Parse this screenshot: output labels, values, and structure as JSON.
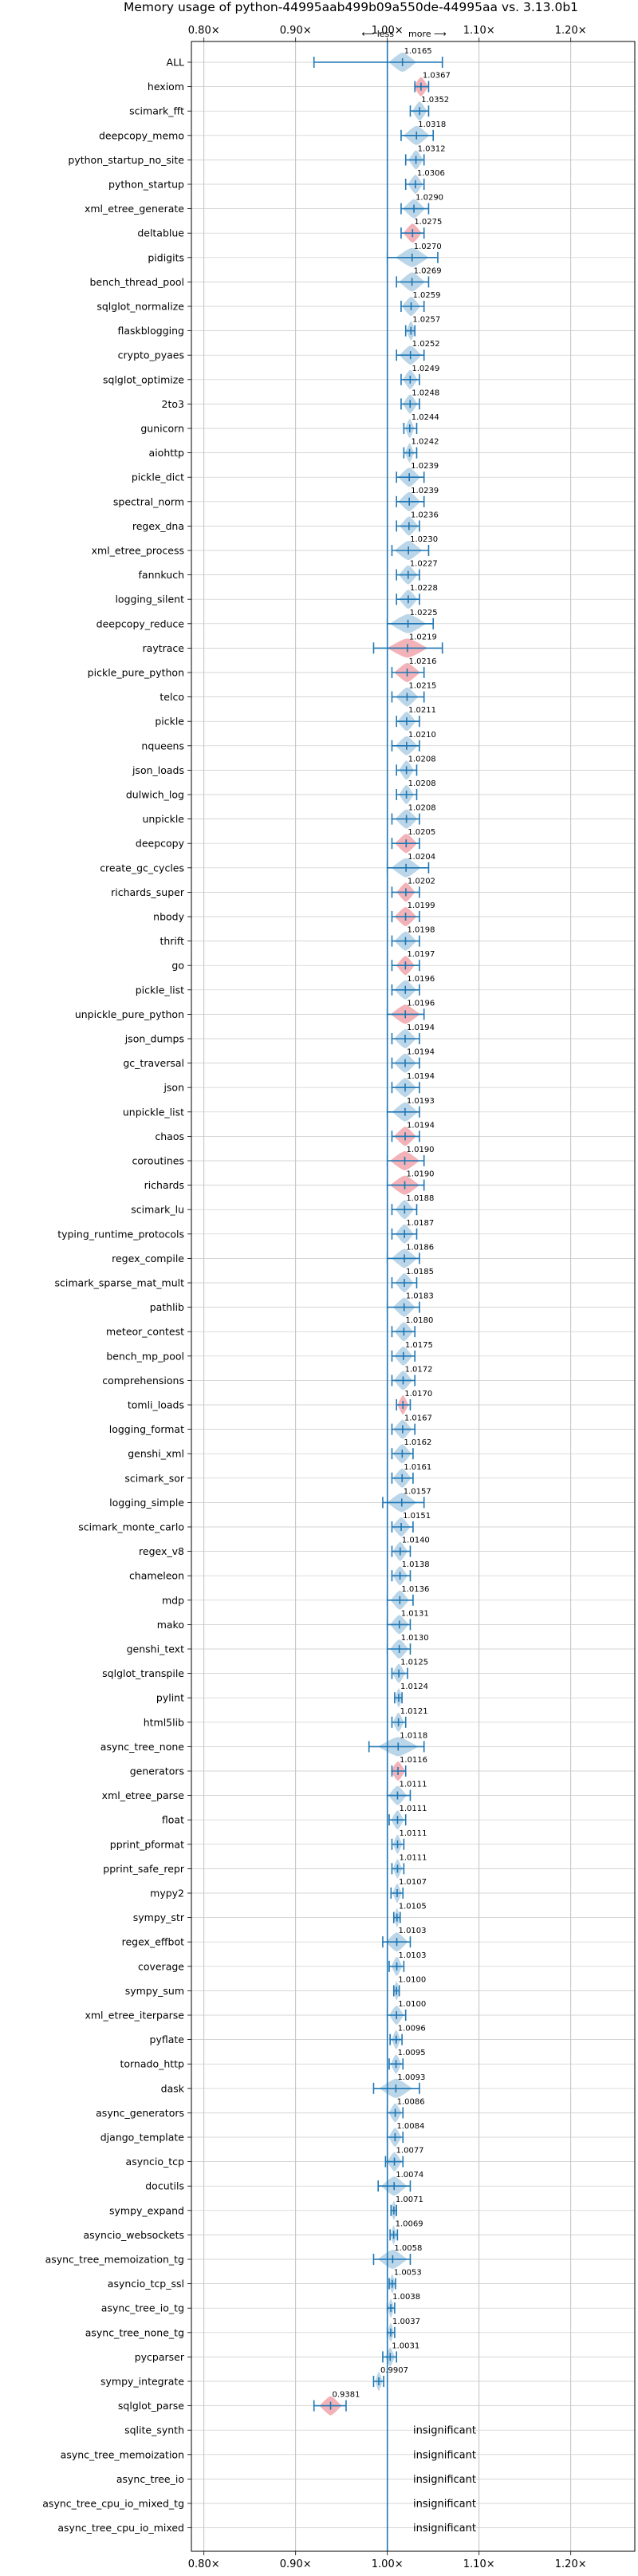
{
  "chart_data": {
    "type": "scatter",
    "title": "Memory usage of python-44995aab499b09a550de-44995aa vs. 3.13.0b1",
    "direction": {
      "less": "⟵ less",
      "more": "more ⟶"
    },
    "x_ticks": [
      {
        "value": 0.8,
        "label": "0.80×"
      },
      {
        "value": 0.9,
        "label": "0.90×"
      },
      {
        "value": 1.0,
        "label": "1.00×"
      },
      {
        "value": 1.1,
        "label": "1.10×"
      },
      {
        "value": 1.2,
        "label": "1.20×"
      }
    ],
    "xlim": [
      0.75,
      1.25
    ],
    "grid": true,
    "reference_line": 1.0,
    "insignificant_label": "insignificant",
    "colors": {
      "improved": "#1f77b4",
      "regressed": "#e8737d",
      "line": "#1f77b4"
    },
    "benchmarks": [
      {
        "name": "ALL",
        "value": 1.0165,
        "label": "1.0165",
        "lo": 0.92,
        "hi": 1.06,
        "spread": 0.015,
        "color": "blue"
      },
      {
        "name": "hexiom",
        "value": 1.0367,
        "label": "1.0367",
        "lo": 1.03,
        "hi": 1.045,
        "spread": 0.008,
        "color": "red"
      },
      {
        "name": "scimark_fft",
        "value": 1.0352,
        "label": "1.0352",
        "lo": 1.025,
        "hi": 1.045,
        "spread": 0.008,
        "color": "blue"
      },
      {
        "name": "deepcopy_memo",
        "value": 1.0318,
        "label": "1.0318",
        "lo": 1.015,
        "hi": 1.05,
        "spread": 0.014,
        "color": "blue"
      },
      {
        "name": "python_startup_no_site",
        "value": 1.0312,
        "label": "1.0312",
        "lo": 1.02,
        "hi": 1.04,
        "spread": 0.008,
        "color": "blue"
      },
      {
        "name": "python_startup",
        "value": 1.0306,
        "label": "1.0306",
        "lo": 1.02,
        "hi": 1.04,
        "spread": 0.008,
        "color": "blue"
      },
      {
        "name": "xml_etree_generate",
        "value": 1.029,
        "label": "1.0290",
        "lo": 1.015,
        "hi": 1.045,
        "spread": 0.012,
        "color": "blue"
      },
      {
        "name": "deltablue",
        "value": 1.0275,
        "label": "1.0275",
        "lo": 1.015,
        "hi": 1.04,
        "spread": 0.01,
        "color": "red"
      },
      {
        "name": "pidigits",
        "value": 1.027,
        "label": "1.0270",
        "lo": 1.0,
        "hi": 1.055,
        "spread": 0.018,
        "color": "blue"
      },
      {
        "name": "bench_thread_pool",
        "value": 1.0269,
        "label": "1.0269",
        "lo": 1.01,
        "hi": 1.045,
        "spread": 0.014,
        "color": "blue"
      },
      {
        "name": "sqlglot_normalize",
        "value": 1.0259,
        "label": "1.0259",
        "lo": 1.015,
        "hi": 1.04,
        "spread": 0.01,
        "color": "blue"
      },
      {
        "name": "flaskblogging",
        "value": 1.0257,
        "label": "1.0257",
        "lo": 1.02,
        "hi": 1.03,
        "spread": 0.005,
        "color": "blue"
      },
      {
        "name": "crypto_pyaes",
        "value": 1.0252,
        "label": "1.0252",
        "lo": 1.01,
        "hi": 1.04,
        "spread": 0.012,
        "color": "blue"
      },
      {
        "name": "sqlglot_optimize",
        "value": 1.0249,
        "label": "1.0249",
        "lo": 1.015,
        "hi": 1.035,
        "spread": 0.008,
        "color": "blue"
      },
      {
        "name": "2to3",
        "value": 1.0248,
        "label": "1.0248",
        "lo": 1.015,
        "hi": 1.035,
        "spread": 0.008,
        "color": "blue"
      },
      {
        "name": "gunicorn",
        "value": 1.0244,
        "label": "1.0244",
        "lo": 1.018,
        "hi": 1.032,
        "spread": 0.005,
        "color": "blue"
      },
      {
        "name": "aiohttp",
        "value": 1.0242,
        "label": "1.0242",
        "lo": 1.018,
        "hi": 1.032,
        "spread": 0.005,
        "color": "blue"
      },
      {
        "name": "pickle_dict",
        "value": 1.0239,
        "label": "1.0239",
        "lo": 1.01,
        "hi": 1.04,
        "spread": 0.012,
        "color": "blue"
      },
      {
        "name": "spectral_norm",
        "value": 1.0239,
        "label": "1.0239",
        "lo": 1.01,
        "hi": 1.04,
        "spread": 0.012,
        "color": "blue"
      },
      {
        "name": "regex_dna",
        "value": 1.0236,
        "label": "1.0236",
        "lo": 1.01,
        "hi": 1.035,
        "spread": 0.01,
        "color": "blue"
      },
      {
        "name": "xml_etree_process",
        "value": 1.023,
        "label": "1.0230",
        "lo": 1.005,
        "hi": 1.045,
        "spread": 0.015,
        "color": "blue"
      },
      {
        "name": "fannkuch",
        "value": 1.0227,
        "label": "1.0227",
        "lo": 1.01,
        "hi": 1.035,
        "spread": 0.01,
        "color": "blue"
      },
      {
        "name": "logging_silent",
        "value": 1.0228,
        "label": "1.0228",
        "lo": 1.01,
        "hi": 1.035,
        "spread": 0.01,
        "color": "blue"
      },
      {
        "name": "deepcopy_reduce",
        "value": 1.0225,
        "label": "1.0225",
        "lo": 1.0,
        "hi": 1.05,
        "spread": 0.02,
        "color": "blue"
      },
      {
        "name": "raytrace",
        "value": 1.0219,
        "label": "1.0219",
        "lo": 0.985,
        "hi": 1.06,
        "spread": 0.022,
        "color": "red"
      },
      {
        "name": "pickle_pure_python",
        "value": 1.0216,
        "label": "1.0216",
        "lo": 1.005,
        "hi": 1.04,
        "spread": 0.014,
        "color": "red"
      },
      {
        "name": "telco",
        "value": 1.0215,
        "label": "1.0215",
        "lo": 1.005,
        "hi": 1.04,
        "spread": 0.012,
        "color": "blue"
      },
      {
        "name": "pickle",
        "value": 1.0211,
        "label": "1.0211",
        "lo": 1.01,
        "hi": 1.035,
        "spread": 0.01,
        "color": "blue"
      },
      {
        "name": "nqueens",
        "value": 1.021,
        "label": "1.0210",
        "lo": 1.005,
        "hi": 1.035,
        "spread": 0.012,
        "color": "blue"
      },
      {
        "name": "json_loads",
        "value": 1.0208,
        "label": "1.0208",
        "lo": 1.01,
        "hi": 1.032,
        "spread": 0.008,
        "color": "blue"
      },
      {
        "name": "dulwich_log",
        "value": 1.0208,
        "label": "1.0208",
        "lo": 1.01,
        "hi": 1.032,
        "spread": 0.008,
        "color": "blue"
      },
      {
        "name": "unpickle",
        "value": 1.0208,
        "label": "1.0208",
        "lo": 1.005,
        "hi": 1.035,
        "spread": 0.012,
        "color": "blue"
      },
      {
        "name": "deepcopy",
        "value": 1.0205,
        "label": "1.0205",
        "lo": 1.005,
        "hi": 1.035,
        "spread": 0.012,
        "color": "red"
      },
      {
        "name": "create_gc_cycles",
        "value": 1.0204,
        "label": "1.0204",
        "lo": 1.0,
        "hi": 1.045,
        "spread": 0.016,
        "color": "blue"
      },
      {
        "name": "richards_super",
        "value": 1.0202,
        "label": "1.0202",
        "lo": 1.005,
        "hi": 1.035,
        "spread": 0.01,
        "color": "red"
      },
      {
        "name": "nbody",
        "value": 1.0199,
        "label": "1.0199",
        "lo": 1.005,
        "hi": 1.035,
        "spread": 0.012,
        "color": "red"
      },
      {
        "name": "thrift",
        "value": 1.0198,
        "label": "1.0198",
        "lo": 1.005,
        "hi": 1.035,
        "spread": 0.012,
        "color": "blue"
      },
      {
        "name": "go",
        "value": 1.0197,
        "label": "1.0197",
        "lo": 1.005,
        "hi": 1.035,
        "spread": 0.01,
        "color": "red"
      },
      {
        "name": "pickle_list",
        "value": 1.0196,
        "label": "1.0196",
        "lo": 1.005,
        "hi": 1.035,
        "spread": 0.012,
        "color": "blue"
      },
      {
        "name": "unpickle_pure_python",
        "value": 1.0196,
        "label": "1.0196",
        "lo": 1.0,
        "hi": 1.04,
        "spread": 0.016,
        "color": "red"
      },
      {
        "name": "json_dumps",
        "value": 1.0194,
        "label": "1.0194",
        "lo": 1.005,
        "hi": 1.035,
        "spread": 0.012,
        "color": "blue"
      },
      {
        "name": "gc_traversal",
        "value": 1.0194,
        "label": "1.0194",
        "lo": 1.005,
        "hi": 1.035,
        "spread": 0.012,
        "color": "blue"
      },
      {
        "name": "json",
        "value": 1.0194,
        "label": "1.0194",
        "lo": 1.005,
        "hi": 1.035,
        "spread": 0.012,
        "color": "blue"
      },
      {
        "name": "unpickle_list",
        "value": 1.0193,
        "label": "1.0193",
        "lo": 1.0,
        "hi": 1.035,
        "spread": 0.014,
        "color": "blue"
      },
      {
        "name": "chaos",
        "value": 1.0194,
        "label": "1.0194",
        "lo": 1.005,
        "hi": 1.035,
        "spread": 0.012,
        "color": "red"
      },
      {
        "name": "coroutines",
        "value": 1.019,
        "label": "1.0190",
        "lo": 1.0,
        "hi": 1.04,
        "spread": 0.016,
        "color": "red"
      },
      {
        "name": "richards",
        "value": 1.019,
        "label": "1.0190",
        "lo": 1.0,
        "hi": 1.04,
        "spread": 0.016,
        "color": "red"
      },
      {
        "name": "scimark_lu",
        "value": 1.0188,
        "label": "1.0188",
        "lo": 1.005,
        "hi": 1.032,
        "spread": 0.01,
        "color": "blue"
      },
      {
        "name": "typing_runtime_protocols",
        "value": 1.0187,
        "label": "1.0187",
        "lo": 1.005,
        "hi": 1.032,
        "spread": 0.01,
        "color": "blue"
      },
      {
        "name": "regex_compile",
        "value": 1.0186,
        "label": "1.0186",
        "lo": 1.0,
        "hi": 1.035,
        "spread": 0.014,
        "color": "blue"
      },
      {
        "name": "scimark_sparse_mat_mult",
        "value": 1.0185,
        "label": "1.0185",
        "lo": 1.005,
        "hi": 1.032,
        "spread": 0.01,
        "color": "blue"
      },
      {
        "name": "pathlib",
        "value": 1.0183,
        "label": "1.0183",
        "lo": 1.0,
        "hi": 1.035,
        "spread": 0.012,
        "color": "blue"
      },
      {
        "name": "meteor_contest",
        "value": 1.018,
        "label": "1.0180",
        "lo": 1.005,
        "hi": 1.03,
        "spread": 0.01,
        "color": "blue"
      },
      {
        "name": "bench_mp_pool",
        "value": 1.0175,
        "label": "1.0175",
        "lo": 1.005,
        "hi": 1.03,
        "spread": 0.01,
        "color": "blue"
      },
      {
        "name": "comprehensions",
        "value": 1.0172,
        "label": "1.0172",
        "lo": 1.005,
        "hi": 1.03,
        "spread": 0.01,
        "color": "blue"
      },
      {
        "name": "tomli_loads",
        "value": 1.017,
        "label": "1.0170",
        "lo": 1.01,
        "hi": 1.025,
        "spread": 0.006,
        "color": "red"
      },
      {
        "name": "logging_format",
        "value": 1.0167,
        "label": "1.0167",
        "lo": 1.005,
        "hi": 1.03,
        "spread": 0.01,
        "color": "blue"
      },
      {
        "name": "genshi_xml",
        "value": 1.0162,
        "label": "1.0162",
        "lo": 1.005,
        "hi": 1.028,
        "spread": 0.01,
        "color": "blue"
      },
      {
        "name": "scimark_sor",
        "value": 1.0161,
        "label": "1.0161",
        "lo": 1.005,
        "hi": 1.028,
        "spread": 0.01,
        "color": "blue"
      },
      {
        "name": "logging_simple",
        "value": 1.0157,
        "label": "1.0157",
        "lo": 0.995,
        "hi": 1.04,
        "spread": 0.016,
        "color": "blue"
      },
      {
        "name": "scimark_monte_carlo",
        "value": 1.0151,
        "label": "1.0151",
        "lo": 1.005,
        "hi": 1.028,
        "spread": 0.01,
        "color": "blue"
      },
      {
        "name": "regex_v8",
        "value": 1.014,
        "label": "1.0140",
        "lo": 1.005,
        "hi": 1.025,
        "spread": 0.008,
        "color": "blue"
      },
      {
        "name": "chameleon",
        "value": 1.0138,
        "label": "1.0138",
        "lo": 1.005,
        "hi": 1.025,
        "spread": 0.008,
        "color": "blue"
      },
      {
        "name": "mdp",
        "value": 1.0136,
        "label": "1.0136",
        "lo": 1.0,
        "hi": 1.028,
        "spread": 0.01,
        "color": "blue"
      },
      {
        "name": "mako",
        "value": 1.0131,
        "label": "1.0131",
        "lo": 1.0,
        "hi": 1.025,
        "spread": 0.01,
        "color": "blue"
      },
      {
        "name": "genshi_text",
        "value": 1.013,
        "label": "1.0130",
        "lo": 1.0,
        "hi": 1.025,
        "spread": 0.01,
        "color": "blue"
      },
      {
        "name": "sqlglot_transpile",
        "value": 1.0125,
        "label": "1.0125",
        "lo": 1.005,
        "hi": 1.022,
        "spread": 0.007,
        "color": "blue"
      },
      {
        "name": "pylint",
        "value": 1.0124,
        "label": "1.0124",
        "lo": 1.008,
        "hi": 1.016,
        "spread": 0.004,
        "color": "blue"
      },
      {
        "name": "html5lib",
        "value": 1.0121,
        "label": "1.0121",
        "lo": 1.005,
        "hi": 1.02,
        "spread": 0.006,
        "color": "blue"
      },
      {
        "name": "async_tree_none",
        "value": 1.0118,
        "label": "1.0118",
        "lo": 0.98,
        "hi": 1.04,
        "spread": 0.022,
        "color": "blue"
      },
      {
        "name": "generators",
        "value": 1.0116,
        "label": "1.0116",
        "lo": 1.005,
        "hi": 1.02,
        "spread": 0.008,
        "color": "red"
      },
      {
        "name": "xml_etree_parse",
        "value": 1.0111,
        "label": "1.0111",
        "lo": 1.0,
        "hi": 1.025,
        "spread": 0.01,
        "color": "blue"
      },
      {
        "name": "float",
        "value": 1.0111,
        "label": "1.0111",
        "lo": 1.002,
        "hi": 1.02,
        "spread": 0.007,
        "color": "blue"
      },
      {
        "name": "pprint_pformat",
        "value": 1.0111,
        "label": "1.0111",
        "lo": 1.005,
        "hi": 1.018,
        "spread": 0.005,
        "color": "blue"
      },
      {
        "name": "pprint_safe_repr",
        "value": 1.0111,
        "label": "1.0111",
        "lo": 1.005,
        "hi": 1.018,
        "spread": 0.005,
        "color": "blue"
      },
      {
        "name": "mypy2",
        "value": 1.0107,
        "label": "1.0107",
        "lo": 1.004,
        "hi": 1.017,
        "spread": 0.005,
        "color": "blue"
      },
      {
        "name": "sympy_str",
        "value": 1.0105,
        "label": "1.0105",
        "lo": 1.007,
        "hi": 1.014,
        "spread": 0.003,
        "color": "blue"
      },
      {
        "name": "regex_effbot",
        "value": 1.0103,
        "label": "1.0103",
        "lo": 0.995,
        "hi": 1.025,
        "spread": 0.012,
        "color": "blue"
      },
      {
        "name": "coverage",
        "value": 1.0103,
        "label": "1.0103",
        "lo": 1.002,
        "hi": 1.018,
        "spread": 0.006,
        "color": "blue"
      },
      {
        "name": "sympy_sum",
        "value": 1.01,
        "label": "1.0100",
        "lo": 1.007,
        "hi": 1.013,
        "spread": 0.003,
        "color": "blue"
      },
      {
        "name": "xml_etree_iterparse",
        "value": 1.01,
        "label": "1.0100",
        "lo": 1.0,
        "hi": 1.02,
        "spread": 0.008,
        "color": "blue"
      },
      {
        "name": "pyflate",
        "value": 1.0096,
        "label": "1.0096",
        "lo": 1.003,
        "hi": 1.016,
        "spread": 0.005,
        "color": "blue"
      },
      {
        "name": "tornado_http",
        "value": 1.0095,
        "label": "1.0095",
        "lo": 1.002,
        "hi": 1.017,
        "spread": 0.006,
        "color": "blue"
      },
      {
        "name": "dask",
        "value": 1.0093,
        "label": "1.0093",
        "lo": 0.985,
        "hi": 1.035,
        "spread": 0.018,
        "color": "blue"
      },
      {
        "name": "async_generators",
        "value": 1.0086,
        "label": "1.0086",
        "lo": 1.0,
        "hi": 1.017,
        "spread": 0.007,
        "color": "blue"
      },
      {
        "name": "django_template",
        "value": 1.0084,
        "label": "1.0084",
        "lo": 1.0,
        "hi": 1.017,
        "spread": 0.007,
        "color": "blue"
      },
      {
        "name": "asyncio_tcp",
        "value": 1.0077,
        "label": "1.0077",
        "lo": 0.998,
        "hi": 1.017,
        "spread": 0.008,
        "color": "blue"
      },
      {
        "name": "docutils",
        "value": 1.0074,
        "label": "1.0074",
        "lo": 0.99,
        "hi": 1.025,
        "spread": 0.014,
        "color": "blue"
      },
      {
        "name": "sympy_expand",
        "value": 1.0071,
        "label": "1.0071",
        "lo": 1.004,
        "hi": 1.01,
        "spread": 0.003,
        "color": "blue"
      },
      {
        "name": "asyncio_websockets",
        "value": 1.0069,
        "label": "1.0069",
        "lo": 1.003,
        "hi": 1.011,
        "spread": 0.003,
        "color": "blue"
      },
      {
        "name": "async_tree_memoization_tg",
        "value": 1.0058,
        "label": "1.0058",
        "lo": 0.985,
        "hi": 1.025,
        "spread": 0.016,
        "color": "blue"
      },
      {
        "name": "asyncio_tcp_ssl",
        "value": 1.0053,
        "label": "1.0053",
        "lo": 1.002,
        "hi": 1.009,
        "spread": 0.003,
        "color": "blue"
      },
      {
        "name": "async_tree_io_tg",
        "value": 1.0038,
        "label": "1.0038",
        "lo": 1.0,
        "hi": 1.008,
        "spread": 0.003,
        "color": "blue"
      },
      {
        "name": "async_tree_none_tg",
        "value": 1.0037,
        "label": "1.0037",
        "lo": 1.0,
        "hi": 1.008,
        "spread": 0.003,
        "color": "blue"
      },
      {
        "name": "pycparser",
        "value": 1.0031,
        "label": "1.0031",
        "lo": 0.995,
        "hi": 1.01,
        "spread": 0.005,
        "color": "blue"
      },
      {
        "name": "sympy_integrate",
        "value": 0.9907,
        "label": "0.9907",
        "lo": 0.985,
        "hi": 0.996,
        "spread": 0.004,
        "color": "blue"
      },
      {
        "name": "sqlglot_parse",
        "value": 0.9381,
        "label": "0.9381",
        "lo": 0.92,
        "hi": 0.955,
        "spread": 0.012,
        "color": "red"
      },
      {
        "name": "sqlite_synth",
        "value": null,
        "label": null,
        "insignificant": true
      },
      {
        "name": "async_tree_memoization",
        "value": null,
        "label": null,
        "insignificant": true
      },
      {
        "name": "async_tree_io",
        "value": null,
        "label": null,
        "insignificant": true
      },
      {
        "name": "async_tree_cpu_io_mixed_tg",
        "value": null,
        "label": null,
        "insignificant": true
      },
      {
        "name": "async_tree_cpu_io_mixed",
        "value": null,
        "label": null,
        "insignificant": true
      }
    ]
  }
}
